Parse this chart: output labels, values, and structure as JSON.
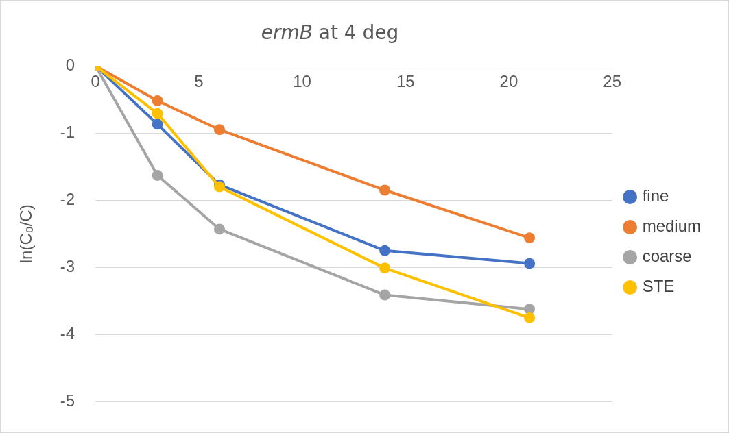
{
  "chart_data": {
    "type": "line",
    "title": "ermB at 4 deg",
    "ylabel": "ln(C₀/C)",
    "x": [
      0,
      3,
      6,
      14,
      21
    ],
    "series": [
      {
        "name": "fine",
        "color": "#4472c4",
        "values": [
          0,
          -0.87,
          -1.77,
          -2.75,
          -2.94
        ]
      },
      {
        "name": "medium",
        "color": "#ed7d31",
        "values": [
          0,
          -0.52,
          -0.95,
          -1.85,
          -2.56
        ]
      },
      {
        "name": "coarse",
        "color": "#a5a5a5",
        "values": [
          0,
          -1.63,
          -2.43,
          -3.41,
          -3.62
        ]
      },
      {
        "name": "STE",
        "color": "#ffc000",
        "values": [
          0,
          -0.71,
          -1.8,
          -3.01,
          -3.75
        ]
      }
    ],
    "xlim": [
      0,
      25
    ],
    "xticks": [
      0,
      5,
      10,
      15,
      20,
      25
    ],
    "ylim": [
      -5,
      0
    ],
    "yticks": [
      -5,
      -4,
      -3,
      -2,
      -1,
      0
    ],
    "grid": "y",
    "legend": "right",
    "marker": "circle",
    "line_style": "solid"
  }
}
